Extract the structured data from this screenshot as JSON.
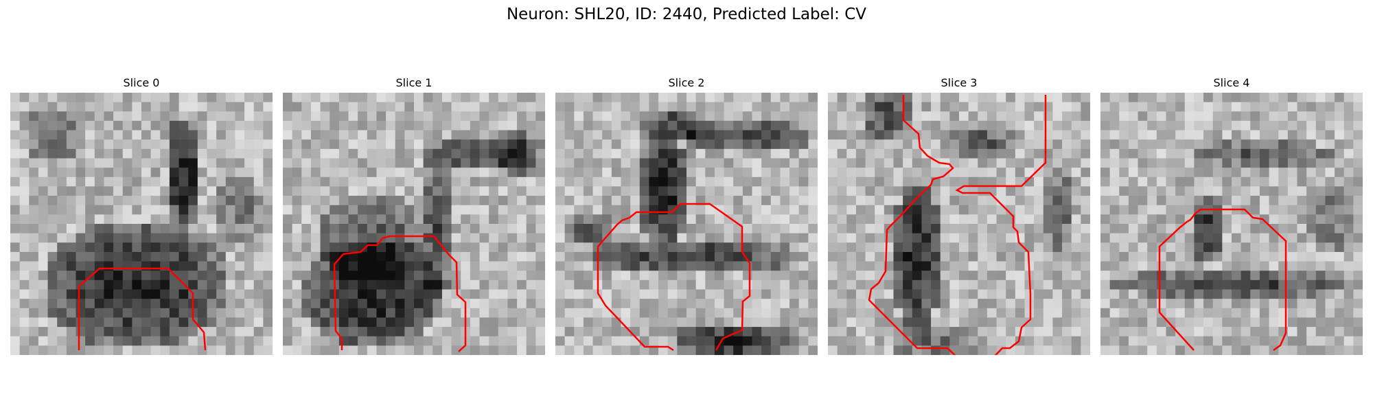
{
  "figure": {
    "title": "Neuron: SHL20, ID: 2440, Predicted Label: CV"
  },
  "panels": [
    {
      "title": "Slice 0"
    },
    {
      "title": "Slice 1"
    },
    {
      "title": "Slice 2"
    },
    {
      "title": "Slice 3"
    },
    {
      "title": "Slice 4"
    }
  ],
  "colors": {
    "contour": "#ff0000",
    "background": "#ffffff"
  }
}
